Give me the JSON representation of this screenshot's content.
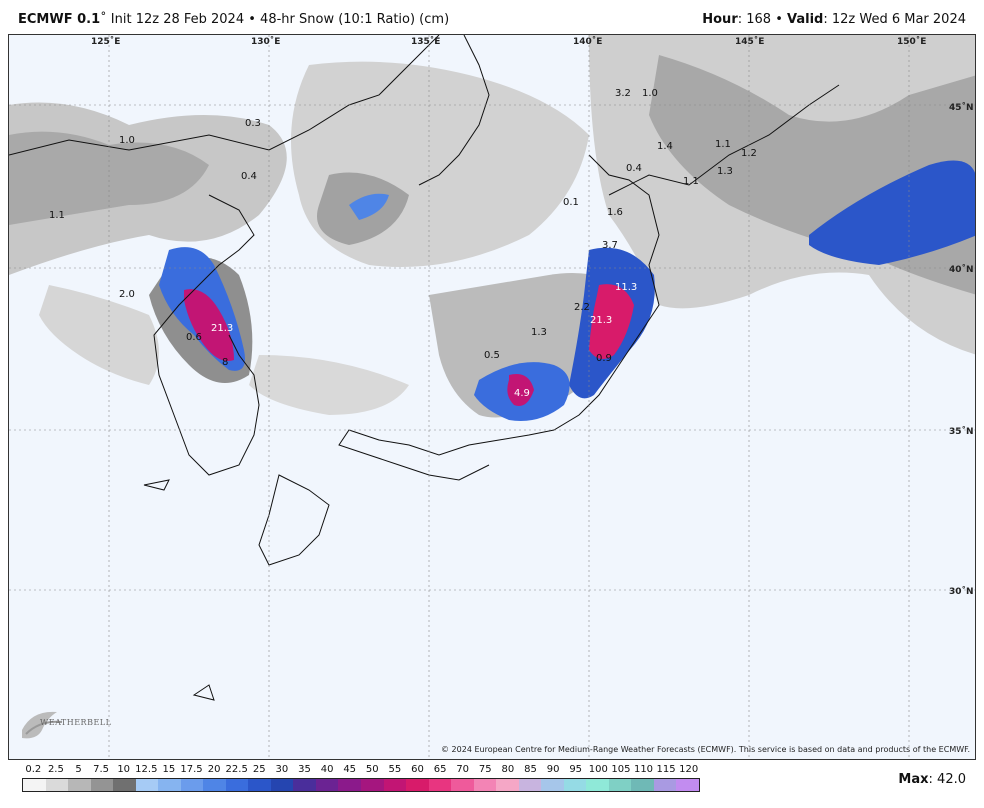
{
  "header": {
    "model": "ECMWF 0.1",
    "init": "Init 12z 28 Feb 2024",
    "product": "48-hr Snow (10:1 Ratio) (cm)",
    "hour_label": "Hour",
    "hour_value": "168",
    "valid_label": "Valid",
    "valid_value": "12z Wed 6 Mar 2024"
  },
  "lon_labels": [
    "125˚E",
    "130˚E",
    "135˚E",
    "140˚E",
    "145˚E",
    "150˚E"
  ],
  "lat_labels": [
    "45˚N",
    "40˚N",
    "35˚N",
    "30˚N"
  ],
  "value_labels": [
    "3.2",
    "1.0",
    "1.4",
    "1.1",
    "1.2",
    "0.3",
    "1.0",
    "0.4",
    "1.1",
    "0.4",
    "1.1",
    "1.3",
    "0.1",
    "1.6",
    "3.7",
    "2.0",
    "11.3",
    "21.3",
    "2.2",
    "21.3",
    "0.6",
    "8",
    "0.5",
    "0.9",
    "4.9",
    "1.3"
  ],
  "copyright": "© 2024 European Centre for Medium-Range Weather Forecasts (ECMWF). This service is based on data and products of the ECMWF.",
  "logo_text": "WEATHERBELL",
  "legend": {
    "ticks": [
      "0.2",
      "2.5",
      "5",
      "7.5",
      "10",
      "12.5",
      "15",
      "17.5",
      "20",
      "22.5",
      "25",
      "30",
      "35",
      "40",
      "45",
      "50",
      "55",
      "60",
      "65",
      "70",
      "75",
      "80",
      "85",
      "90",
      "95",
      "100",
      "105",
      "110",
      "115",
      "120"
    ],
    "colors": [
      "#f4f4f4",
      "#dadada",
      "#b7b7b7",
      "#949494",
      "#707070",
      "#a6cbf5",
      "#86b4f0",
      "#6b9cec",
      "#4f85e6",
      "#3a6ddd",
      "#2b56c9",
      "#2545b0",
      "#4a2e9b",
      "#6b2393",
      "#8b1a8b",
      "#a5167f",
      "#c21574",
      "#d81b6a",
      "#e83580",
      "#ef5a9b",
      "#f384b5",
      "#f5a7c6",
      "#c8b4df",
      "#a6c6ea",
      "#95dbe5",
      "#8fe9d8",
      "#7fd0c5",
      "#6fb9b6",
      "#a99ae2",
      "#c28cf0"
    ],
    "max_label": "Max",
    "max_value": "42.0"
  }
}
